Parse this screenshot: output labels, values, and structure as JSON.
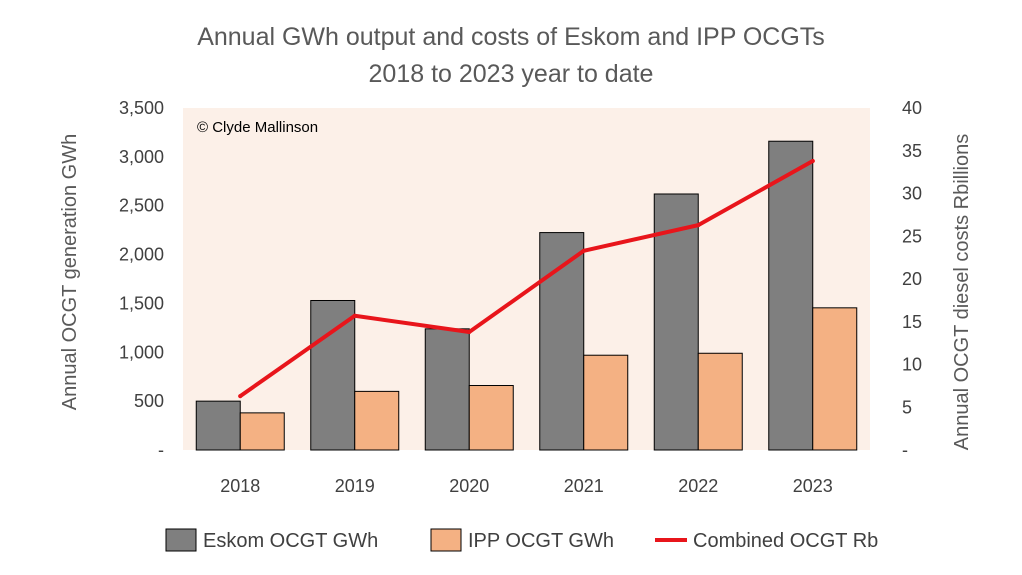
{
  "chart_data": {
    "type": "bar",
    "title_lines": [
      "Annual GWh output and costs of Eskom and IPP OCGTs",
      "2018 to 2023 year to date"
    ],
    "watermark": "© Clyde Mallinson",
    "categories": [
      "2018",
      "2019",
      "2020",
      "2021",
      "2022",
      "2023"
    ],
    "ylabel": "Annual OCGT generation GWh",
    "y2label": "Annual OCGT diesel costs Rbillions",
    "ylim": [
      0,
      3500
    ],
    "y2lim": [
      0,
      40
    ],
    "yticks": [
      "-",
      "500",
      "1,000",
      "1,500",
      "2,000",
      "2,500",
      "3,000",
      "3,500"
    ],
    "y2ticks": [
      "-",
      "5",
      "10",
      "15",
      "20",
      "25",
      "30",
      "35",
      "40"
    ],
    "grid": false,
    "legend_position": "bottom",
    "series": [
      {
        "name": "Eskom OCGT GWh",
        "type": "bar",
        "axis": "left",
        "color": "#7f7f7f",
        "values": [
          500,
          1530,
          1240,
          2225,
          2620,
          3160
        ]
      },
      {
        "name": "IPP OCGT GWh",
        "type": "bar",
        "axis": "left",
        "color": "#f4b183",
        "values": [
          380,
          600,
          660,
          970,
          990,
          1455
        ]
      },
      {
        "name": "Combined OCGT Rb",
        "type": "line",
        "axis": "right",
        "color": "#e8151b",
        "values": [
          6.3,
          15.7,
          13.8,
          23.3,
          26.3,
          33.8
        ]
      }
    ],
    "plot_background": "#fcf0e8"
  }
}
